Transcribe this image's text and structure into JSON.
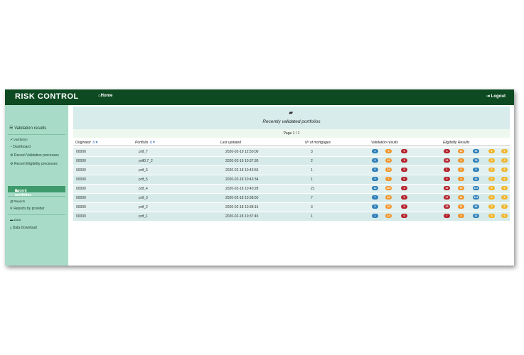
{
  "header": {
    "brand": "RISK CONTROL",
    "home": "Home",
    "logout": "Logout"
  },
  "sidebar": {
    "title": "Validation results",
    "sections": [
      {
        "label": "Validation",
        "items": [
          "Dashboard",
          "Recent Validation processes",
          "Recent Eligibility processes",
          "Recent portfolios"
        ]
      },
      {
        "label": "Reports",
        "items": [
          "Reports by provider"
        ]
      },
      {
        "label": "Data",
        "items": [
          "Data Download"
        ]
      }
    ],
    "active": "Recent portfolios"
  },
  "panel": {
    "title": "Recently validated portfolios",
    "pager": "Page 1 / 1"
  },
  "table": {
    "columns": [
      "Originator",
      "Portfolio",
      "Last updated",
      "Nº of mortgages",
      "Validation results",
      "Eligibility Results"
    ],
    "rows": [
      {
        "originator": "00000",
        "portfolio": "prtf_7",
        "updated": "2020-02-19 12:50:00",
        "mortgages": "3",
        "validation": [
          "2",
          "4",
          "0"
        ],
        "eligibility": [
          "4",
          "10",
          "91",
          "1",
          "0"
        ]
      },
      {
        "originator": "00000",
        "portfolio": "prtf0.7_2",
        "updated": "2020-02-19 10:37:30",
        "mortgages": "2",
        "validation": [
          "0",
          "11",
          "3"
        ],
        "eligibility": [
          "22",
          "0",
          "78",
          "0",
          "0"
        ]
      },
      {
        "originator": "00000",
        "portfolio": "prtf_6",
        "updated": "2020-02-18 10:43:56",
        "mortgages": "1",
        "validation": [
          "0",
          "14",
          "0"
        ],
        "eligibility": [
          "1",
          "0",
          "0",
          "0",
          "0"
        ]
      },
      {
        "originator": "00000",
        "portfolio": "prtf_5",
        "updated": "2020-02-18 10:43:34",
        "mortgages": "1",
        "validation": [
          "0",
          "7",
          "0"
        ],
        "eligibility": [
          "0",
          "4",
          "32",
          "0",
          "0"
        ]
      },
      {
        "originator": "00000",
        "portfolio": "prtf_4",
        "updated": "2020-02-18 10:40:28",
        "mortgages": "21",
        "validation": [
          "13",
          "420",
          "5"
        ],
        "eligibility": [
          "36",
          "39",
          "407",
          "0",
          "0"
        ]
      },
      {
        "originator": "00000",
        "portfolio": "prtf_3",
        "updated": "2020-02-18 10:38:50",
        "mortgages": "7",
        "validation": [
          "7",
          "44",
          "0"
        ],
        "eligibility": [
          "17",
          "21",
          "212",
          "0",
          "0"
        ]
      },
      {
        "originator": "00000",
        "portfolio": "prtf_2",
        "updated": "2020-02-18 10:38:16",
        "mortgages": "3",
        "validation": [
          "0",
          "15",
          "0"
        ],
        "eligibility": [
          "20",
          "11",
          "96",
          "0",
          "0"
        ]
      },
      {
        "originator": "00000",
        "portfolio": "prtf_1",
        "updated": "2020-02-18 10:37:45",
        "mortgages": "1",
        "validation": [
          "1",
          "14",
          "0"
        ],
        "eligibility": [
          "7",
          "4",
          "32",
          "0",
          "0"
        ]
      }
    ]
  },
  "colors": {
    "blue": "#2f7fb8",
    "orange": "#f0952d",
    "red": "#b5232c",
    "yellow": "#f2b52e",
    "topbar": "#0d4a22",
    "sidebar": "#a8dcc8"
  },
  "icons": [
    "home-icon",
    "logout-icon",
    "menu-icon",
    "check-icon",
    "dashboard-icon",
    "cogs-icon",
    "folder-icon",
    "list-icon",
    "link-icon",
    "download-icon",
    "folder-open-icon",
    "sort-icon",
    "filter-icon"
  ]
}
